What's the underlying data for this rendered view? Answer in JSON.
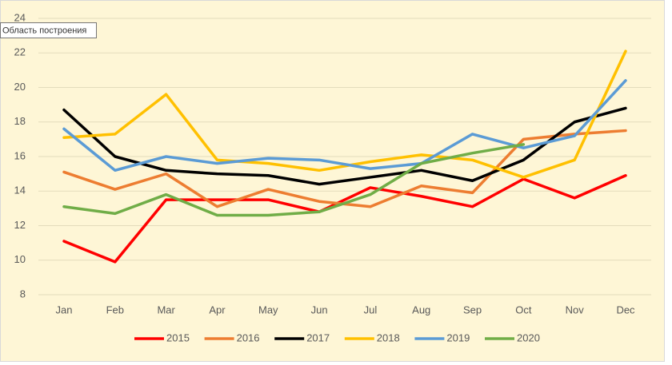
{
  "chart_data": {
    "type": "line",
    "tooltip": "Область построения",
    "categories": [
      "Jan",
      "Feb",
      "Mar",
      "Apr",
      "May",
      "Jun",
      "Jul",
      "Aug",
      "Sep",
      "Oct",
      "Nov",
      "Dec"
    ],
    "series": [
      {
        "name": "2015",
        "color": "#ff0000",
        "values": [
          11.1,
          9.9,
          13.5,
          13.5,
          13.5,
          12.8,
          14.2,
          13.7,
          13.1,
          14.7,
          13.6,
          14.9
        ]
      },
      {
        "name": "2016",
        "color": "#ed7d31",
        "values": [
          15.1,
          14.1,
          15.0,
          13.1,
          14.1,
          13.4,
          13.1,
          14.3,
          13.9,
          17.0,
          17.3,
          17.5
        ]
      },
      {
        "name": "2017",
        "color": "#000000",
        "values": [
          18.7,
          16.0,
          15.2,
          15.0,
          14.9,
          14.4,
          14.8,
          15.2,
          14.6,
          15.8,
          18.0,
          18.8
        ]
      },
      {
        "name": "2018",
        "color": "#ffc000",
        "values": [
          17.1,
          17.3,
          19.6,
          15.8,
          15.6,
          15.2,
          15.7,
          16.1,
          15.8,
          14.8,
          15.8,
          22.1
        ]
      },
      {
        "name": "2019",
        "color": "#5b9bd5",
        "values": [
          17.6,
          15.2,
          16.0,
          15.6,
          15.9,
          15.8,
          15.3,
          15.6,
          17.3,
          16.5,
          17.2,
          20.4
        ]
      },
      {
        "name": "2020",
        "color": "#70ad47",
        "values": [
          13.1,
          12.7,
          13.8,
          12.6,
          12.6,
          12.8,
          13.8,
          15.6,
          16.2,
          16.7,
          null,
          null
        ]
      }
    ],
    "ylim": [
      8,
      24
    ],
    "yticks": [
      8,
      10,
      12,
      14,
      16,
      18,
      20,
      22,
      24
    ],
    "grid": true,
    "legend": "bottom"
  }
}
